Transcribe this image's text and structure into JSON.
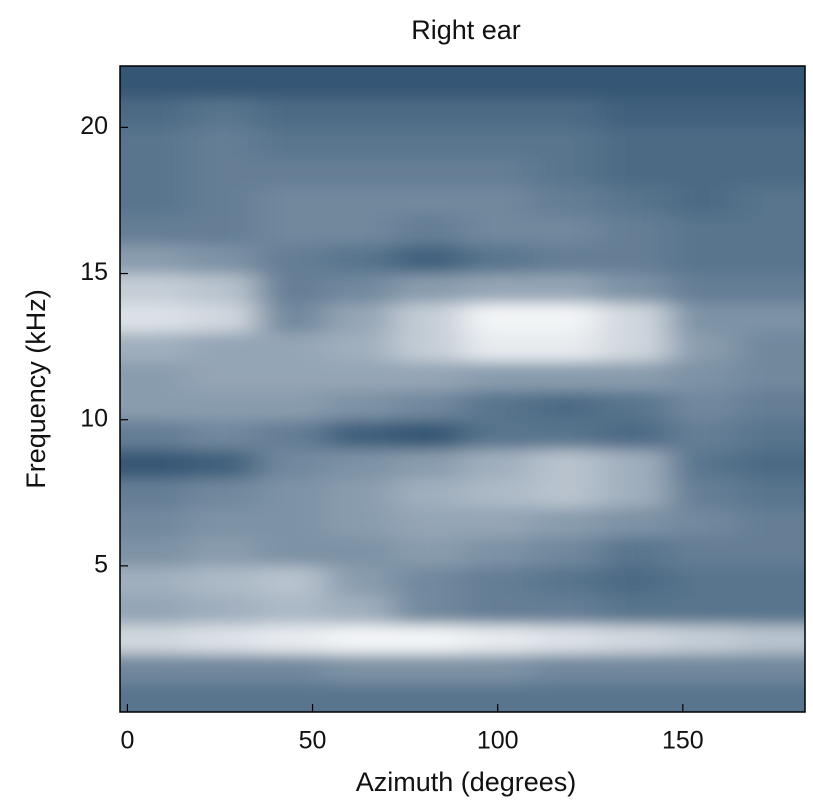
{
  "chart_data": {
    "type": "heatmap",
    "title": "Right ear",
    "x_label": "Azimuth (degrees)",
    "y_label": "Frequency (kHz)",
    "xlim": [
      -2,
      183
    ],
    "ylim": [
      0,
      22.1
    ],
    "xticks": [
      0,
      50,
      100,
      150
    ],
    "yticks": [
      5,
      10,
      15,
      20
    ],
    "colormap": [
      "#12385c",
      "#ffffff"
    ],
    "x": [
      7.25,
      25.75,
      44.25,
      62.75,
      81.25,
      99.75,
      118.25,
      136.75,
      155.25,
      173.75
    ],
    "y": [
      0.5,
      1.5,
      2.5,
      3.5,
      4.5,
      5.5,
      6.5,
      7.5,
      8.5,
      9.5,
      10.5,
      11.5,
      12.5,
      13.5,
      14.5,
      15.5,
      16.5,
      17.5,
      18.5,
      19.5,
      20.5,
      21.5
    ],
    "z": [
      [
        0.3,
        0.3,
        0.3,
        0.3,
        0.3,
        0.3,
        0.3,
        0.3,
        0.3,
        0.3
      ],
      [
        0.4,
        0.4,
        0.4,
        0.45,
        0.45,
        0.45,
        0.4,
        0.4,
        0.4,
        0.4
      ],
      [
        0.8,
        0.85,
        0.9,
        0.95,
        0.95,
        0.9,
        0.85,
        0.8,
        0.75,
        0.7
      ],
      [
        0.55,
        0.6,
        0.65,
        0.6,
        0.4,
        0.35,
        0.35,
        0.3,
        0.3,
        0.3
      ],
      [
        0.6,
        0.65,
        0.7,
        0.5,
        0.4,
        0.35,
        0.3,
        0.25,
        0.3,
        0.3
      ],
      [
        0.45,
        0.5,
        0.45,
        0.45,
        0.5,
        0.45,
        0.4,
        0.3,
        0.35,
        0.35
      ],
      [
        0.4,
        0.45,
        0.45,
        0.5,
        0.55,
        0.55,
        0.5,
        0.45,
        0.4,
        0.35
      ],
      [
        0.35,
        0.4,
        0.45,
        0.5,
        0.6,
        0.65,
        0.7,
        0.6,
        0.35,
        0.3
      ],
      [
        0.15,
        0.2,
        0.4,
        0.45,
        0.5,
        0.6,
        0.7,
        0.6,
        0.3,
        0.25
      ],
      [
        0.35,
        0.4,
        0.35,
        0.2,
        0.15,
        0.3,
        0.3,
        0.25,
        0.35,
        0.3
      ],
      [
        0.5,
        0.5,
        0.5,
        0.45,
        0.4,
        0.3,
        0.25,
        0.3,
        0.4,
        0.35
      ],
      [
        0.5,
        0.55,
        0.55,
        0.55,
        0.55,
        0.5,
        0.5,
        0.5,
        0.45,
        0.4
      ],
      [
        0.6,
        0.55,
        0.55,
        0.6,
        0.75,
        0.9,
        0.9,
        0.8,
        0.5,
        0.4
      ],
      [
        0.85,
        0.8,
        0.4,
        0.55,
        0.75,
        0.95,
        0.95,
        0.8,
        0.45,
        0.45
      ],
      [
        0.75,
        0.7,
        0.35,
        0.4,
        0.5,
        0.55,
        0.55,
        0.45,
        0.35,
        0.35
      ],
      [
        0.5,
        0.45,
        0.35,
        0.3,
        0.2,
        0.3,
        0.35,
        0.35,
        0.3,
        0.3
      ],
      [
        0.35,
        0.35,
        0.4,
        0.4,
        0.35,
        0.4,
        0.4,
        0.35,
        0.3,
        0.3
      ],
      [
        0.3,
        0.35,
        0.4,
        0.4,
        0.4,
        0.4,
        0.35,
        0.3,
        0.25,
        0.3
      ],
      [
        0.3,
        0.35,
        0.35,
        0.35,
        0.35,
        0.35,
        0.3,
        0.25,
        0.25,
        0.25
      ],
      [
        0.3,
        0.35,
        0.3,
        0.3,
        0.3,
        0.3,
        0.3,
        0.25,
        0.25,
        0.25
      ],
      [
        0.25,
        0.3,
        0.25,
        0.25,
        0.25,
        0.25,
        0.25,
        0.2,
        0.2,
        0.2
      ],
      [
        0.15,
        0.15,
        0.15,
        0.15,
        0.15,
        0.15,
        0.15,
        0.15,
        0.15,
        0.15
      ]
    ]
  }
}
